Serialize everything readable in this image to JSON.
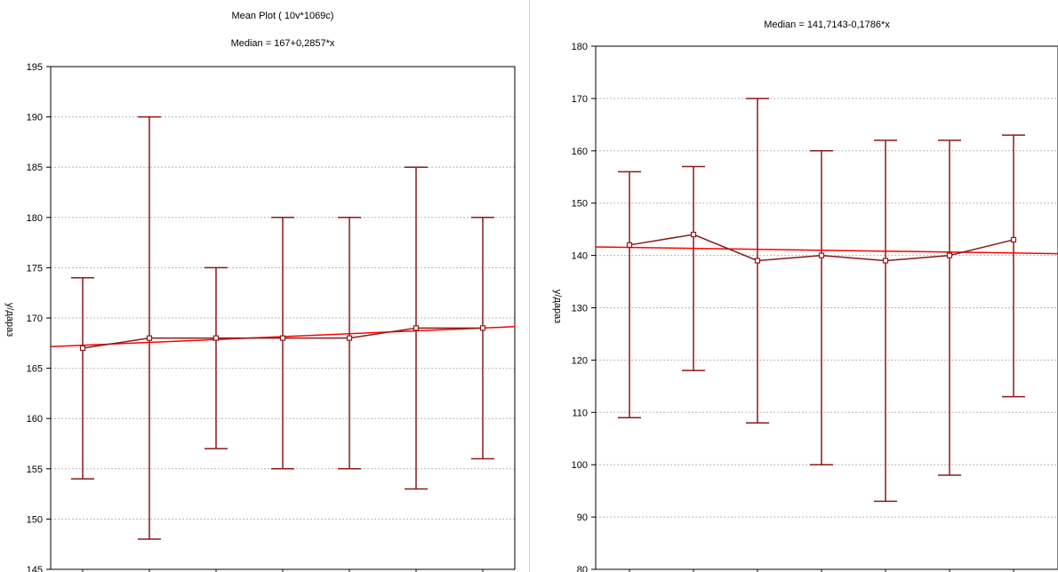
{
  "chart_data": [
    {
      "type": "error-bar",
      "title": "Mean Plot ( 10v*1069c)",
      "subtitle": "Median = 167+0,2857*x",
      "xlabel": "",
      "ylabel": "у/дараз",
      "ylim": [
        145,
        195
      ],
      "yticks": [
        "145",
        "150",
        "155",
        "160",
        "165",
        "170",
        "175",
        "180",
        "185",
        "190",
        "195"
      ],
      "grid": true,
      "x": [
        1,
        2,
        3,
        4,
        5,
        6,
        7
      ],
      "series": [
        {
          "name": "median",
          "values": [
            167,
            168,
            168,
            168,
            168,
            169,
            169
          ]
        }
      ],
      "whisker_low": [
        154,
        148,
        157,
        155,
        155,
        153,
        156
      ],
      "whisker_high": [
        174,
        190,
        175,
        180,
        180,
        185,
        180
      ],
      "fit_line": {
        "intercept": 167,
        "slope": 0.2857
      },
      "colors": {
        "series": "#8b1a1a",
        "fit": "#ff0000",
        "grid": "#b5b5b5"
      }
    },
    {
      "type": "error-bar",
      "title": "",
      "subtitle": "Median = 141,7143-0,1786*x",
      "xlabel": "",
      "ylabel": "у/дараз",
      "ylim": [
        80,
        180
      ],
      "yticks": [
        "80",
        "90",
        "100",
        "110",
        "120",
        "130",
        "140",
        "150",
        "160",
        "170",
        "180"
      ],
      "grid": true,
      "x": [
        1,
        2,
        3,
        4,
        5,
        6,
        7
      ],
      "series": [
        {
          "name": "median",
          "values": [
            142,
            144,
            139,
            140,
            139,
            140,
            143
          ]
        }
      ],
      "whisker_low": [
        109,
        118,
        108,
        100,
        93,
        98,
        113
      ],
      "whisker_high": [
        156,
        157,
        170,
        160,
        162,
        162,
        163
      ],
      "fit_line": {
        "intercept": 141.7143,
        "slope": -0.1786
      },
      "colors": {
        "series": "#8b1a1a",
        "fit": "#ff0000",
        "grid": "#b5b5b5"
      }
    }
  ]
}
